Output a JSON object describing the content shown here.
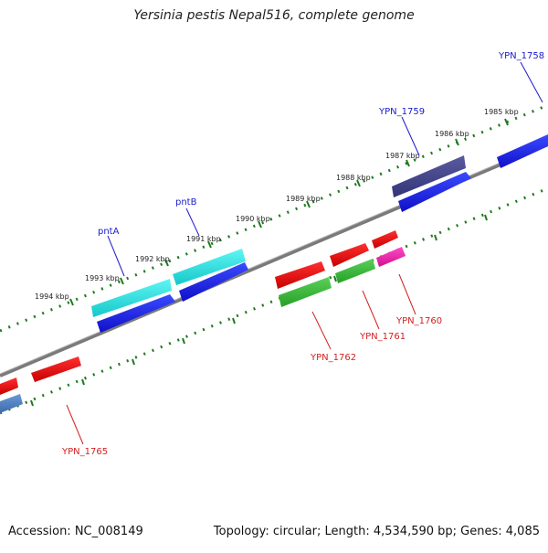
{
  "map": {
    "title": "Yersinia pestis Nepal516, complete genome",
    "accession": "Accession: NC_008149",
    "summary": "Topology: circular; Length: 4,534,590 bp; Genes: 4,085"
  },
  "ticks": {
    "outer": [
      "1985 kbp",
      "1986 kbp",
      "1987 kbp",
      "1988 kbp",
      "1989 kbp",
      "1990 kbp",
      "1991 kbp",
      "1992 kbp",
      "1993 kbp",
      "1994 kbp"
    ]
  },
  "genes": {
    "forward": [
      "YPN_1758",
      "YPN_1759",
      "pntB",
      "pntA"
    ],
    "reverse": [
      "YPN_1760",
      "YPN_1761",
      "YPN_1762",
      "YPN_1765"
    ]
  },
  "colors": {
    "forward_label": "#1a1acc",
    "reverse_label": "#d42020",
    "tick": "#1f7a1f",
    "backbone": "#7a7a7a"
  }
}
